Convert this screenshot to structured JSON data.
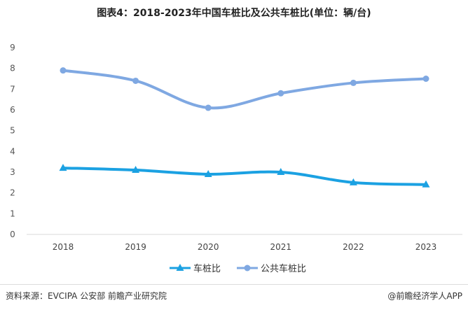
{
  "title": "图表4：2018-2023年中国车桩比及公共车桩比(单位：辆/台)",
  "footer": {
    "source": "资料来源：EVCIPA 公安部 前瞻产业研究院",
    "brand": "@前瞻经济学人APP"
  },
  "chart_data": {
    "type": "line",
    "title": "图表4：2018-2023年中国车桩比及公共车桩比(单位：辆/台)",
    "categories": [
      "2018",
      "2019",
      "2020",
      "2021",
      "2022",
      "2023"
    ],
    "ylim": [
      0,
      9
    ],
    "yticks": [
      0,
      1,
      2,
      3,
      4,
      5,
      6,
      7,
      8,
      9
    ],
    "grid": false,
    "legend": "bottom",
    "series": [
      {
        "name": "车桩比",
        "values": [
          3.2,
          3.1,
          2.9,
          3.0,
          2.5,
          2.4
        ],
        "color": "#1ba1e2",
        "marker": "triangle"
      },
      {
        "name": "公共车桩比",
        "values": [
          7.9,
          7.4,
          6.1,
          6.8,
          7.3,
          7.5
        ],
        "color": "#7fa8e2",
        "marker": "circle"
      }
    ]
  }
}
